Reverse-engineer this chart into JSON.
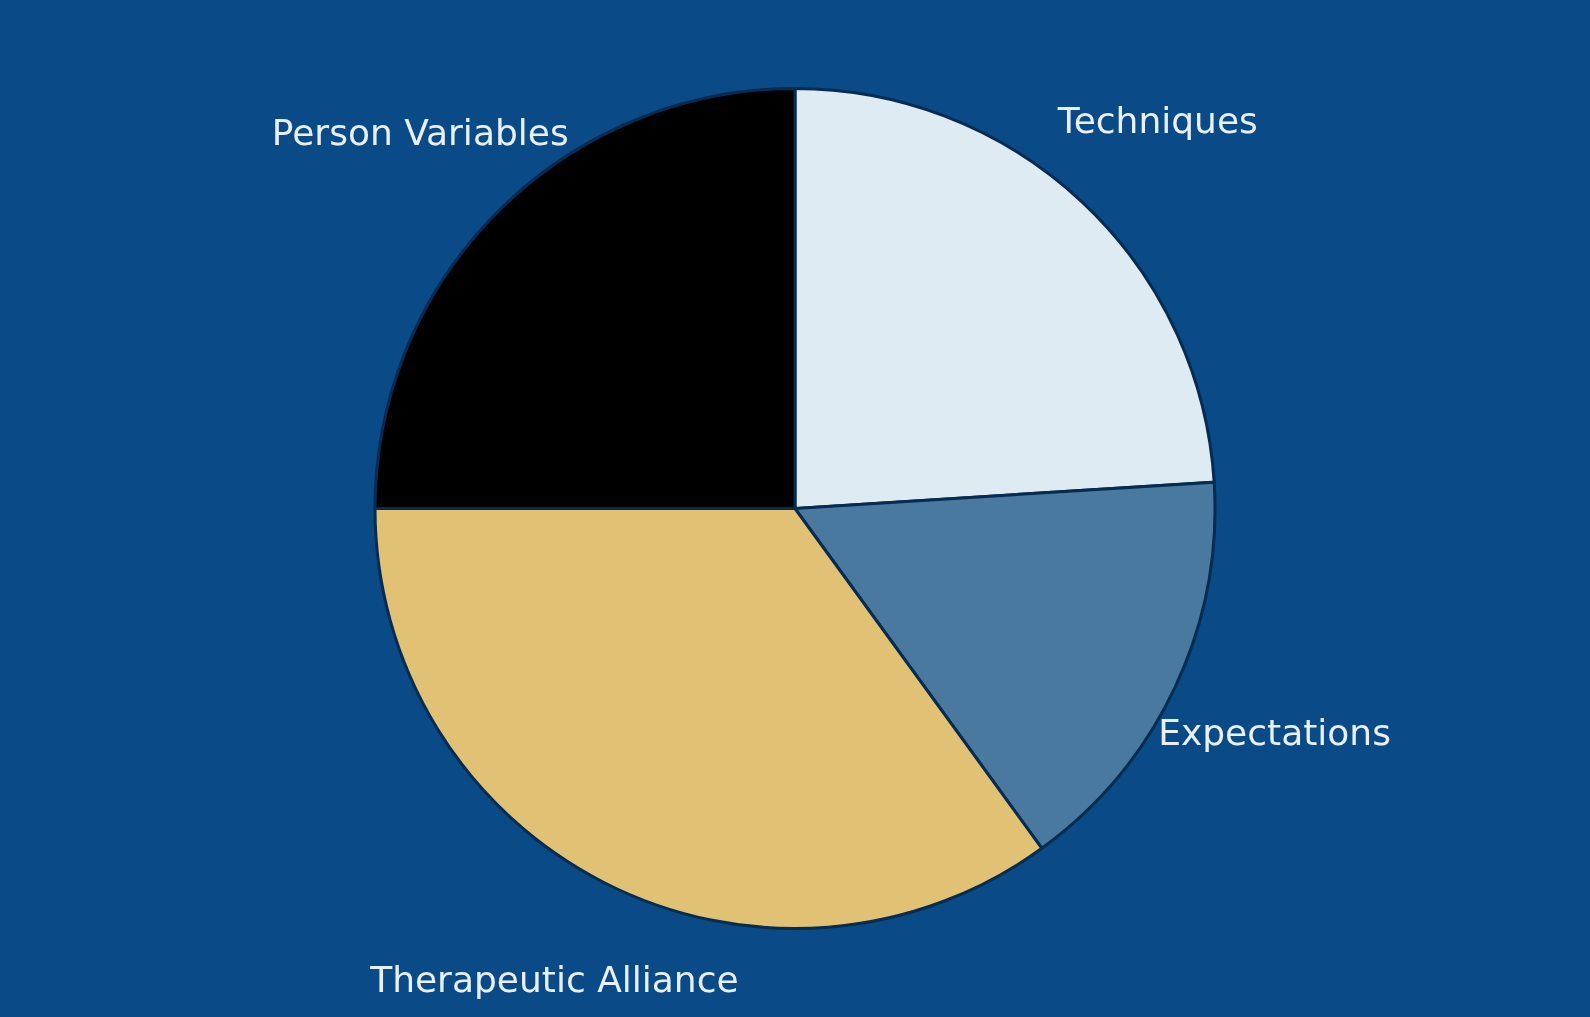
{
  "chart_data": {
    "type": "pie",
    "categories": [
      "Techniques",
      "Expectations",
      "Therapeutic Alliance",
      "Person Variables"
    ],
    "values": [
      24,
      16,
      35,
      25
    ],
    "colors": [
      "#deebf2",
      "#4a79a0",
      "#e1c173",
      "#000000"
    ]
  }
}
